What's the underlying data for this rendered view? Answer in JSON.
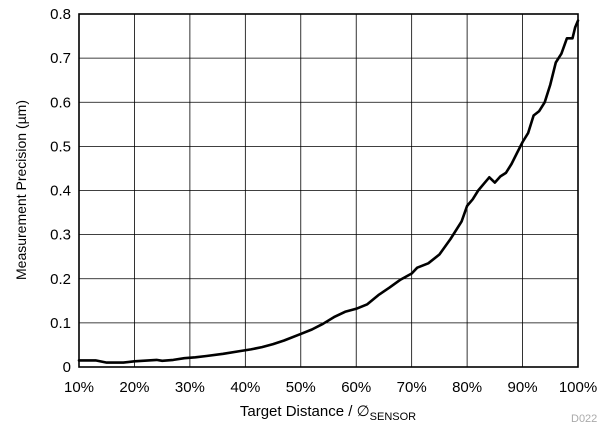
{
  "chart_data": {
    "type": "line",
    "xlabel": "Target Distance / ∅",
    "xlabel_subscript": "SENSOR",
    "ylabel": "Measurement Precision (µm)",
    "watermark": "D022",
    "xlim": [
      10,
      100
    ],
    "ylim": [
      0,
      0.8
    ],
    "x_ticks": [
      10,
      20,
      30,
      40,
      50,
      60,
      70,
      80,
      90,
      100
    ],
    "x_tick_labels": [
      "10%",
      "20%",
      "30%",
      "40%",
      "50%",
      "60%",
      "70%",
      "80%",
      "90%",
      "100%"
    ],
    "y_ticks": [
      0,
      0.1,
      0.2,
      0.3,
      0.4,
      0.5,
      0.6,
      0.7,
      0.8
    ],
    "y_tick_labels": [
      "0",
      "0.1",
      "0.2",
      "0.3",
      "0.4",
      "0.5",
      "0.6",
      "0.7",
      "0.8"
    ],
    "grid": true,
    "series": [
      {
        "color": "#000000",
        "x": [
          10,
          13,
          15,
          18,
          20,
          24,
          25,
          27,
          29,
          31,
          33,
          36,
          39,
          41,
          43,
          45,
          47,
          50,
          52,
          54,
          56,
          58,
          60,
          62,
          64,
          66,
          68,
          70,
          71,
          73,
          75,
          77,
          79,
          80,
          81,
          82,
          83,
          84,
          85,
          86,
          87,
          88,
          89,
          90,
          91,
          92,
          93,
          94,
          95,
          96,
          97,
          98,
          99,
          99.5,
          100
        ],
        "y": [
          0.015,
          0.015,
          0.01,
          0.01,
          0.013,
          0.016,
          0.014,
          0.016,
          0.02,
          0.022,
          0.025,
          0.03,
          0.036,
          0.04,
          0.045,
          0.052,
          0.06,
          0.075,
          0.085,
          0.098,
          0.113,
          0.125,
          0.132,
          0.142,
          0.163,
          0.18,
          0.198,
          0.212,
          0.225,
          0.235,
          0.255,
          0.29,
          0.33,
          0.365,
          0.38,
          0.4,
          0.415,
          0.43,
          0.418,
          0.432,
          0.44,
          0.46,
          0.485,
          0.51,
          0.53,
          0.57,
          0.58,
          0.6,
          0.64,
          0.69,
          0.71,
          0.745,
          0.745,
          0.77,
          0.785
        ]
      }
    ]
  }
}
